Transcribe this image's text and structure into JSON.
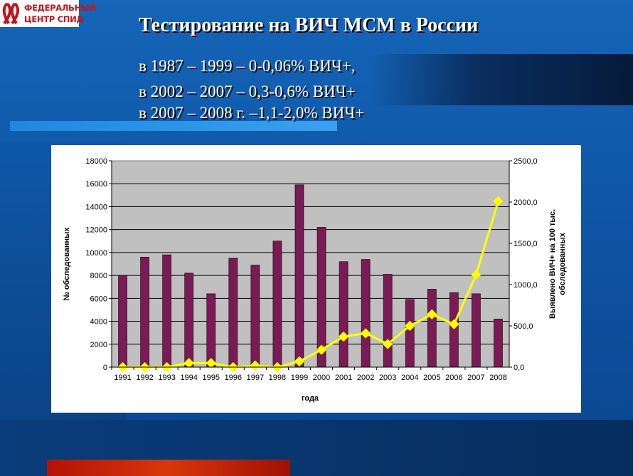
{
  "logo": {
    "line1": "ФЕДЕРАЛЬНЫЙ",
    "line2": "ЦЕНТР СПИД"
  },
  "slide": {
    "title": "Тестирование на ВИЧ МСМ в России",
    "lines": [
      "в  1987 – 1999 – 0-0,06% ВИЧ+,",
      "в  2002 – 2007 – 0,3-0,6% ВИЧ+",
      "в 2007 – 2008 г. –1,1-2,0% ВИЧ+"
    ]
  },
  "chart_data": {
    "type": "bar",
    "categories": [
      "1991",
      "1992",
      "1993",
      "1994",
      "1995",
      "1996",
      "1997",
      "1998",
      "1999",
      "2000",
      "2001",
      "2002",
      "2003",
      "2004",
      "2005",
      "2006",
      "2007",
      "2008"
    ],
    "xlabel": "года",
    "ylabel": "№ обследованных",
    "y2label": [
      "Выявлено ВИЧ+ на 100 тыс.",
      "обследованных"
    ],
    "ylim": [
      0,
      18000
    ],
    "y2lim": [
      0,
      2500
    ],
    "yticks": [
      "0",
      "2000",
      "4000",
      "6000",
      "8000",
      "10000",
      "12000",
      "14000",
      "16000",
      "18000"
    ],
    "y2ticks": [
      "0,0",
      "500,0",
      "1000,0",
      "1500,0",
      "2000,0",
      "2500,0"
    ],
    "grid": "horizontal",
    "series": [
      {
        "type": "bar",
        "axis": "left",
        "color": "#7b1a55",
        "values": [
          8000,
          9600,
          9800,
          8200,
          6400,
          9500,
          8900,
          11000,
          15900,
          12200,
          9200,
          9400,
          8100,
          5900,
          6800,
          6500,
          6400,
          4200
        ]
      },
      {
        "type": "line",
        "axis": "right",
        "color": "#ffff00",
        "values": [
          0,
          0,
          0,
          50,
          50,
          0,
          20,
          0,
          70,
          210,
          370,
          410,
          280,
          500,
          640,
          520,
          1120,
          2010
        ]
      }
    ]
  }
}
